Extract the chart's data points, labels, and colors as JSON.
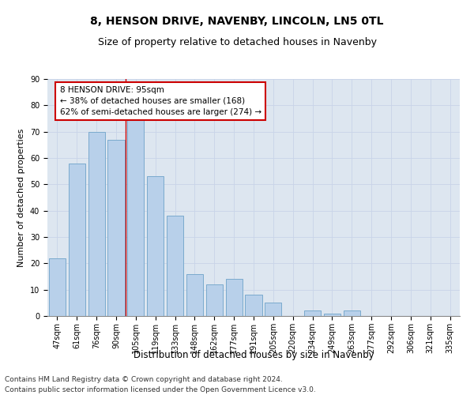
{
  "title": "8, HENSON DRIVE, NAVENBY, LINCOLN, LN5 0TL",
  "subtitle": "Size of property relative to detached houses in Navenby",
  "xlabel": "Distribution of detached houses by size in Navenby",
  "ylabel": "Number of detached properties",
  "categories": [
    "47sqm",
    "61sqm",
    "76sqm",
    "90sqm",
    "105sqm",
    "119sqm",
    "133sqm",
    "148sqm",
    "162sqm",
    "177sqm",
    "191sqm",
    "205sqm",
    "220sqm",
    "234sqm",
    "249sqm",
    "263sqm",
    "277sqm",
    "292sqm",
    "306sqm",
    "321sqm",
    "335sqm"
  ],
  "values": [
    22,
    58,
    70,
    67,
    76,
    53,
    38,
    16,
    12,
    14,
    8,
    5,
    0,
    2,
    1,
    2,
    0,
    0,
    0,
    0,
    0
  ],
  "bar_color": "#b8d0ea",
  "bar_edge_color": "#7aaace",
  "vline_x": 3.5,
  "annotation_text": "8 HENSON DRIVE: 95sqm\n← 38% of detached houses are smaller (168)\n62% of semi-detached houses are larger (274) →",
  "annotation_box_color": "#ffffff",
  "annotation_box_edge": "#cc0000",
  "vline_color": "#cc0000",
  "ylim": [
    0,
    90
  ],
  "yticks": [
    0,
    10,
    20,
    30,
    40,
    50,
    60,
    70,
    80,
    90
  ],
  "grid_color": "#c8d4e8",
  "background_color": "#dde6f0",
  "footer_line1": "Contains HM Land Registry data © Crown copyright and database right 2024.",
  "footer_line2": "Contains public sector information licensed under the Open Government Licence v3.0.",
  "title_fontsize": 10,
  "subtitle_fontsize": 9,
  "xlabel_fontsize": 8.5,
  "ylabel_fontsize": 8,
  "tick_fontsize": 7,
  "annotation_fontsize": 7.5,
  "footer_fontsize": 6.5
}
